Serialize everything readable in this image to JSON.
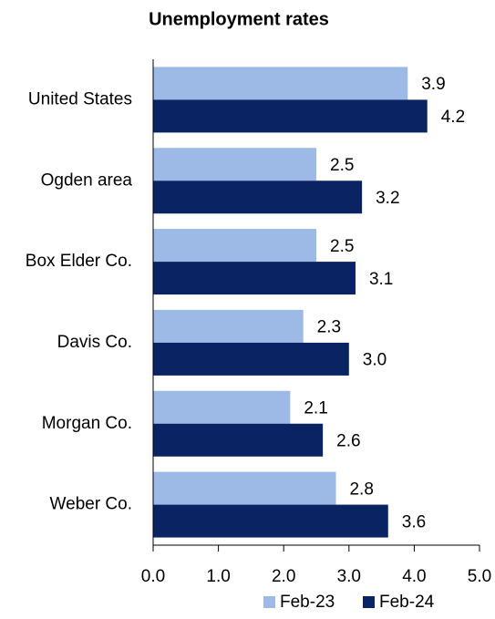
{
  "chart_data": {
    "type": "bar",
    "orientation": "horizontal",
    "title": "Unemployment rates",
    "categories": [
      "United States",
      "Ogden area",
      "Box Elder Co.",
      "Davis Co.",
      "Morgan Co.",
      "Weber Co."
    ],
    "series": [
      {
        "name": "Feb-23",
        "color": "#9dbae6",
        "values": [
          3.9,
          2.5,
          2.5,
          2.3,
          2.1,
          2.8
        ]
      },
      {
        "name": "Feb-24",
        "color": "#0a2463",
        "values": [
          4.2,
          3.2,
          3.1,
          3,
          2.6,
          3.6
        ],
        "value_labels": [
          "4.2",
          "3.2",
          "3.1",
          "3.0",
          "2.6",
          "3.6"
        ]
      }
    ],
    "xlim": [
      0,
      5
    ],
    "xticks": [
      {
        "value": 0,
        "label": "0.0"
      },
      {
        "value": 1,
        "label": "1.0"
      },
      {
        "value": 2,
        "label": "2.0"
      },
      {
        "value": 3,
        "label": "3.0"
      },
      {
        "value": 4,
        "label": "4.0"
      },
      {
        "value": 5,
        "label": "5.0"
      }
    ],
    "legend": "bottom"
  }
}
